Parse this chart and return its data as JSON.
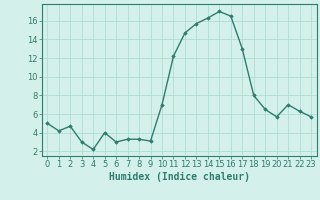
{
  "x": [
    0,
    1,
    2,
    3,
    4,
    5,
    6,
    7,
    8,
    9,
    10,
    11,
    12,
    13,
    14,
    15,
    16,
    17,
    18,
    19,
    20,
    21,
    22,
    23
  ],
  "y": [
    5.0,
    4.2,
    4.7,
    3.0,
    2.2,
    4.0,
    3.0,
    3.3,
    3.3,
    3.1,
    7.0,
    12.2,
    14.7,
    15.7,
    16.3,
    17.0,
    16.5,
    13.0,
    8.0,
    6.5,
    5.7,
    7.0,
    6.3,
    5.7
  ],
  "line_color": "#2e7d6e",
  "marker": "D",
  "marker_size": 1.8,
  "linewidth": 1.0,
  "bg_color": "#d4f0eb",
  "grid_color": "#b0ddd6",
  "xlabel": "Humidex (Indice chaleur)",
  "xlim": [
    -0.5,
    23.5
  ],
  "ylim": [
    1.5,
    17.8
  ],
  "yticks": [
    2,
    4,
    6,
    8,
    10,
    12,
    14,
    16
  ],
  "xticks": [
    0,
    1,
    2,
    3,
    4,
    5,
    6,
    7,
    8,
    9,
    10,
    11,
    12,
    13,
    14,
    15,
    16,
    17,
    18,
    19,
    20,
    21,
    22,
    23
  ],
  "xlabel_fontsize": 7,
  "tick_fontsize": 6,
  "tick_color": "#2e7d6e",
  "spine_color": "#2e7d6e"
}
